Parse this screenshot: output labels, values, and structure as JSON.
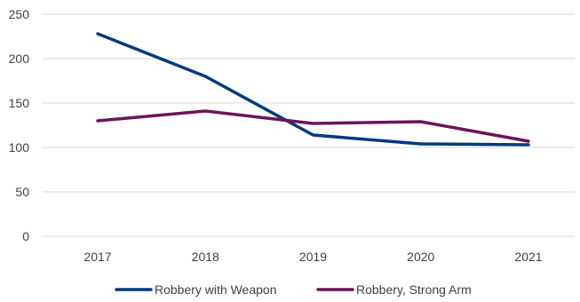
{
  "chart_data": {
    "type": "line",
    "title": "",
    "xlabel": "",
    "ylabel": "",
    "categories": [
      "2017",
      "2018",
      "2019",
      "2020",
      "2021"
    ],
    "ylim": [
      0,
      250
    ],
    "y_ticks": [
      0,
      50,
      100,
      150,
      200,
      250
    ],
    "grid": true,
    "legend_position": "bottom",
    "series": [
      {
        "name": "Robbery with Weapon",
        "color": "#003a7d",
        "values": [
          228,
          180,
          114,
          104,
          103
        ]
      },
      {
        "name": "Robbery, Strong Arm",
        "color": "#6b1558",
        "values": [
          130,
          141,
          127,
          129,
          107
        ]
      }
    ]
  }
}
